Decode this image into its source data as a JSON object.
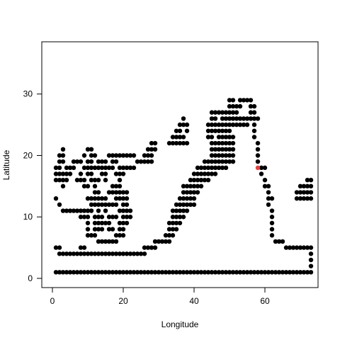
{
  "chart_data": {
    "type": "scatter",
    "title": "",
    "xlabel": "Longitude",
    "ylabel": "Latitude",
    "xlim": [
      -3,
      75
    ],
    "ylim": [
      -1.5,
      38.5
    ],
    "xticks": [
      0,
      20,
      40,
      60
    ],
    "yticks": [
      0,
      10,
      20,
      30
    ],
    "grid": false,
    "legend": "none",
    "colors": {
      "points": "#000000",
      "highlight": "#e8413c",
      "axes": "#000000",
      "background": "#ffffff"
    },
    "highlight_point": {
      "x": 58,
      "y": 18
    },
    "rows": [
      {
        "y": 29,
        "x": [
          [
            50,
            51
          ],
          [
            53,
            56
          ]
        ]
      },
      {
        "y": 28,
        "x": [
          [
            50,
            53
          ],
          [
            56,
            57
          ]
        ]
      },
      {
        "y": 27,
        "x": [
          [
            45,
            52
          ],
          [
            56,
            57
          ]
        ]
      },
      {
        "y": 26,
        "x": [
          [
            37,
            37
          ],
          [
            45,
            46
          ],
          [
            48,
            58
          ]
        ]
      },
      {
        "y": 25,
        "x": [
          [
            36,
            38
          ],
          [
            44,
            55
          ],
          [
            57,
            57
          ]
        ]
      },
      {
        "y": 24,
        "x": [
          [
            35,
            36
          ],
          [
            38,
            38
          ],
          [
            44,
            50
          ],
          [
            57,
            57
          ]
        ]
      },
      {
        "y": 23,
        "x": [
          [
            34,
            37
          ],
          [
            44,
            45
          ],
          [
            47,
            51
          ],
          [
            57,
            57
          ]
        ]
      },
      {
        "y": 22,
        "x": [
          [
            28,
            29
          ],
          [
            33,
            38
          ],
          [
            45,
            51
          ],
          [
            58,
            58
          ]
        ]
      },
      {
        "y": 21,
        "x": [
          [
            3,
            3
          ],
          [
            10,
            11
          ],
          [
            27,
            29
          ],
          [
            45,
            51
          ],
          [
            58,
            58
          ]
        ]
      },
      {
        "y": 20,
        "x": [
          [
            2,
            3
          ],
          [
            9,
            9
          ],
          [
            11,
            12
          ],
          [
            16,
            23
          ],
          [
            26,
            28
          ],
          [
            45,
            51
          ],
          [
            58,
            58
          ]
        ]
      },
      {
        "y": 19,
        "x": [
          [
            2,
            3
          ],
          [
            6,
            8
          ],
          [
            10,
            11
          ],
          [
            13,
            15
          ],
          [
            17,
            18
          ],
          [
            24,
            28
          ],
          [
            43,
            51
          ],
          [
            58,
            58
          ]
        ]
      },
      {
        "y": 18,
        "x": [
          [
            1,
            2
          ],
          [
            4,
            6
          ],
          [
            9,
            17
          ],
          [
            19,
            23
          ],
          [
            41,
            49
          ],
          [
            59,
            60
          ]
        ]
      },
      {
        "y": 17,
        "x": [
          [
            1,
            5
          ],
          [
            8,
            8
          ],
          [
            10,
            11
          ],
          [
            14,
            15
          ],
          [
            18,
            20
          ],
          [
            40,
            46
          ],
          [
            59,
            59
          ]
        ]
      },
      {
        "y": 16,
        "x": [
          [
            1,
            4
          ],
          [
            7,
            9
          ],
          [
            11,
            13
          ],
          [
            15,
            15
          ],
          [
            19,
            19
          ],
          [
            39,
            44
          ],
          [
            60,
            60
          ],
          [
            72,
            73
          ]
        ]
      },
      {
        "y": 15,
        "x": [
          [
            3,
            3
          ],
          [
            9,
            10
          ],
          [
            12,
            12
          ],
          [
            17,
            19
          ],
          [
            37,
            42
          ],
          [
            60,
            61
          ],
          [
            70,
            73
          ]
        ]
      },
      {
        "y": 14,
        "x": [
          [
            12,
            13
          ],
          [
            16,
            21
          ],
          [
            37,
            41
          ],
          [
            61,
            61
          ],
          [
            69,
            73
          ]
        ]
      },
      {
        "y": 13,
        "x": [
          [
            1,
            1
          ],
          [
            10,
            15
          ],
          [
            18,
            21
          ],
          [
            36,
            40
          ],
          [
            61,
            62
          ],
          [
            69,
            73
          ]
        ]
      },
      {
        "y": 12,
        "x": [
          [
            2,
            2
          ],
          [
            11,
            18
          ],
          [
            20,
            21
          ],
          [
            35,
            40
          ],
          [
            61,
            61
          ]
        ]
      },
      {
        "y": 11,
        "x": [
          [
            3,
            11
          ],
          [
            13,
            13
          ],
          [
            15,
            15
          ],
          [
            19,
            22
          ],
          [
            34,
            38
          ],
          [
            62,
            62
          ]
        ]
      },
      {
        "y": 10,
        "x": [
          [
            8,
            10
          ],
          [
            12,
            14
          ],
          [
            16,
            18
          ],
          [
            20,
            22
          ],
          [
            34,
            37
          ],
          [
            62,
            62
          ]
        ]
      },
      {
        "y": 9,
        "x": [
          [
            10,
            10
          ],
          [
            12,
            16
          ],
          [
            19,
            21
          ],
          [
            33,
            36
          ],
          [
            62,
            62
          ]
        ]
      },
      {
        "y": 8,
        "x": [
          [
            10,
            10
          ],
          [
            12,
            14
          ],
          [
            16,
            17
          ],
          [
            19,
            20
          ],
          [
            33,
            35
          ],
          [
            62,
            62
          ]
        ]
      },
      {
        "y": 7,
        "x": [
          [
            10,
            12
          ],
          [
            18,
            20
          ],
          [
            32,
            34
          ],
          [
            62,
            62
          ]
        ]
      },
      {
        "y": 6,
        "x": [
          [
            13,
            18
          ],
          [
            29,
            33
          ],
          [
            63,
            65
          ]
        ]
      },
      {
        "y": 5,
        "x": [
          [
            1,
            2
          ],
          [
            8,
            9
          ],
          [
            26,
            29
          ],
          [
            66,
            73
          ]
        ]
      },
      {
        "y": 4,
        "x": [
          [
            2,
            26
          ],
          [
            73,
            73
          ]
        ]
      },
      {
        "y": 3,
        "x": [
          [
            73,
            73
          ]
        ]
      },
      {
        "y": 2,
        "x": [
          [
            73,
            73
          ]
        ]
      },
      {
        "y": 1,
        "x": [
          [
            1,
            73
          ]
        ]
      }
    ]
  }
}
